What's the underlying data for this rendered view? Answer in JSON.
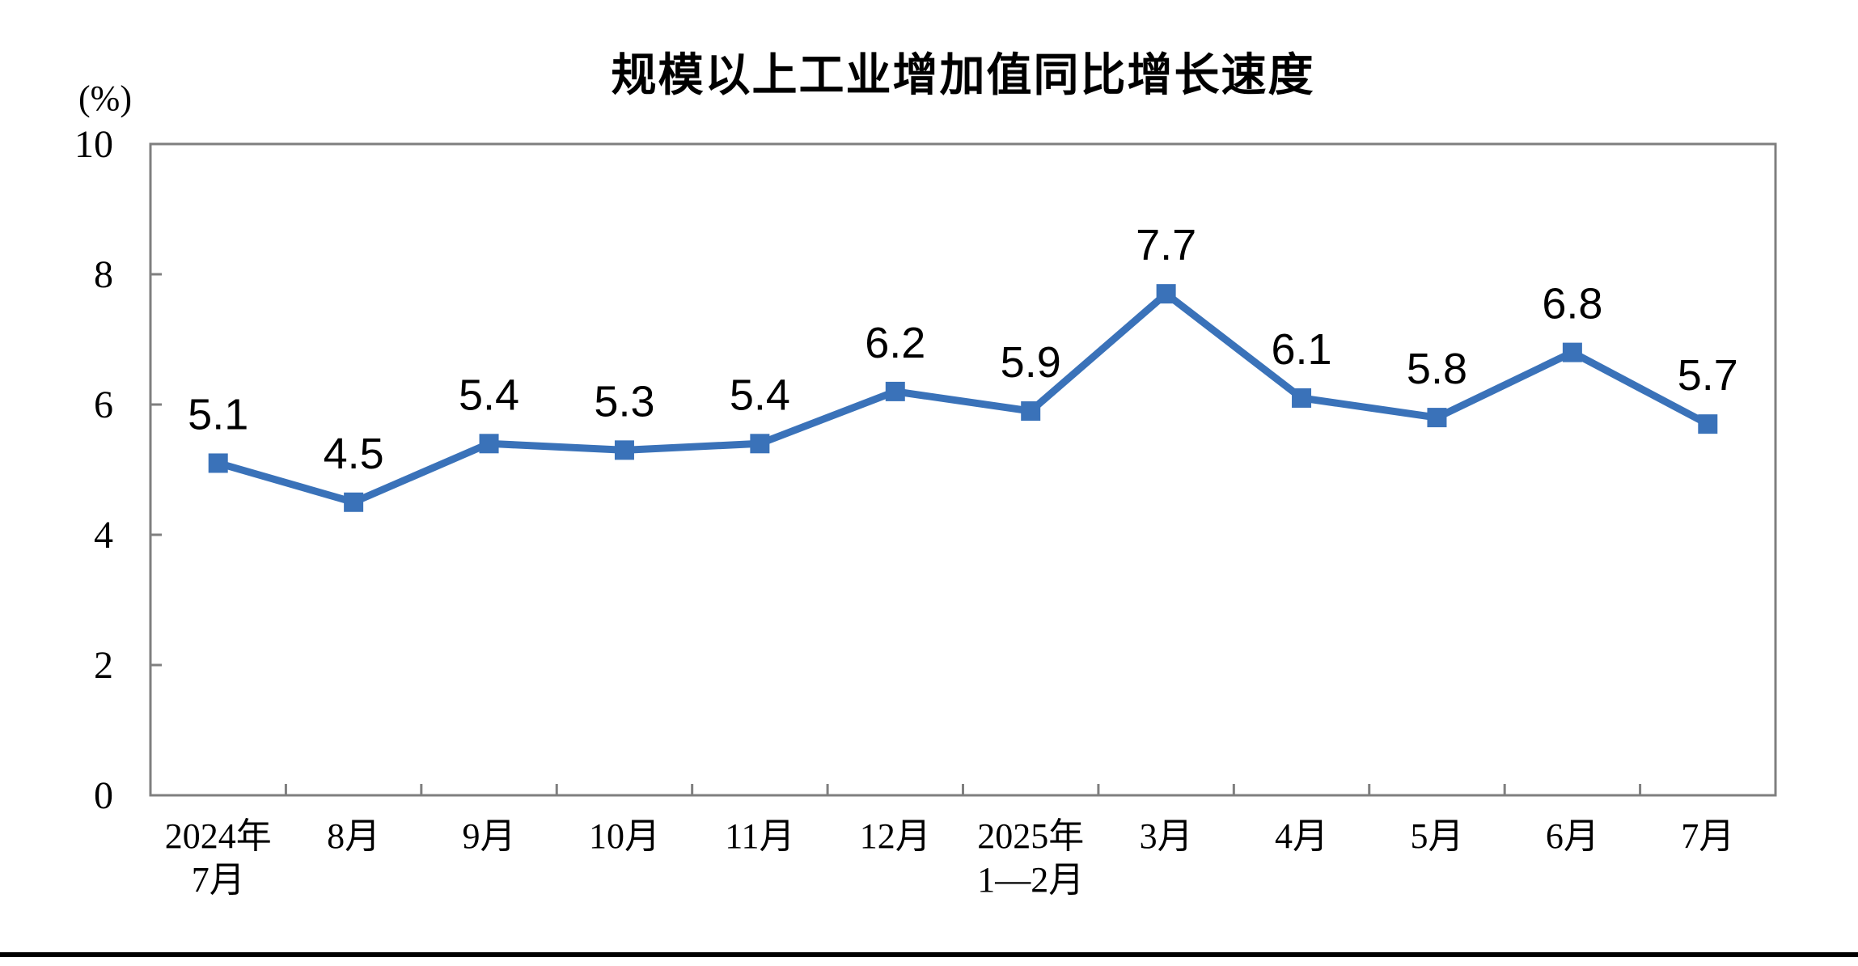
{
  "chart_data": {
    "type": "line",
    "title": "规模以上工业增加值同比增长速度",
    "unit_label": "(%)",
    "categories": [
      "2024年\n7月",
      "8月",
      "9月",
      "10月",
      "11月",
      "12月",
      "2025年\n1—2月",
      "3月",
      "4月",
      "5月",
      "6月",
      "7月"
    ],
    "values": [
      5.1,
      4.5,
      5.4,
      5.3,
      5.4,
      6.2,
      5.9,
      7.7,
      6.1,
      5.8,
      6.8,
      5.7
    ],
    "yticks": [
      0,
      2,
      4,
      6,
      8,
      10
    ],
    "ylim": [
      0,
      10
    ],
    "grid": false,
    "legend_position": "none",
    "marker": "square",
    "colors": {
      "line": "#3A72B9",
      "marker": "#3A72B9",
      "axis": "#7F7F7F",
      "data_label": "#000000",
      "tick_label": "#000000",
      "bottom_rule": "#000000"
    }
  }
}
